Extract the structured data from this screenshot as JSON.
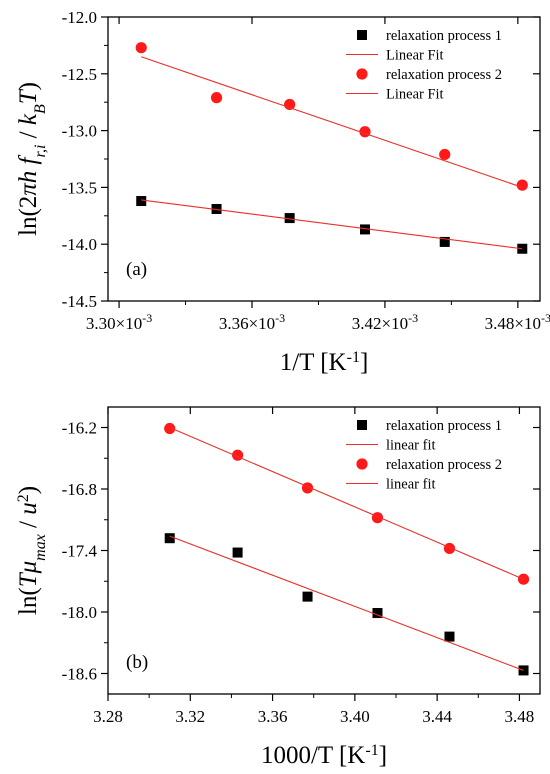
{
  "chart_data": [
    {
      "type": "scatter",
      "panel_label": "(a)",
      "xlabel": "1/T [K",
      "xlabel_sup": "-1",
      "xlabel_close": "]",
      "ylabel": "ln(2πh f_r,i / k_B T)",
      "xlim": [
        0.003295,
        0.00349
      ],
      "ylim": [
        -14.5,
        -12.0
      ],
      "x_ticks": [
        0.0033,
        0.00336,
        0.00342,
        0.00348
      ],
      "x_tick_labels": [
        {
          "mantissa": "3.30×10",
          "exp": "-3"
        },
        {
          "mantissa": "3.36×10",
          "exp": "-3"
        },
        {
          "mantissa": "3.42×10",
          "exp": "-3"
        },
        {
          "mantissa": "3.48×10",
          "exp": "-3"
        }
      ],
      "y_ticks": [
        -12.0,
        -12.5,
        -13.0,
        -13.5,
        -14.0,
        -14.5
      ],
      "y_tick_labels": [
        "-12.0",
        "-12.5",
        "-13.0",
        "-13.5",
        "-14.0",
        "-14.5"
      ],
      "legend_position": "top-right",
      "series": [
        {
          "name": "relaxation process 1",
          "marker": "square",
          "color": "#000000",
          "x": [
            0.00331,
            0.003344,
            0.003377,
            0.003411,
            0.003447,
            0.003482
          ],
          "y": [
            -13.62,
            -13.69,
            -13.77,
            -13.87,
            -13.98,
            -14.04
          ]
        },
        {
          "name": "Linear Fit",
          "kind": "line",
          "color": "#e8302a",
          "x": [
            0.00331,
            0.003482
          ],
          "y": [
            -13.61,
            -14.04
          ]
        },
        {
          "name": "relaxation process 2",
          "marker": "circle",
          "color": "#ff1a1a",
          "x": [
            0.00331,
            0.003344,
            0.003377,
            0.003411,
            0.003447,
            0.003482
          ],
          "y": [
            -12.27,
            -12.71,
            -12.77,
            -13.01,
            -13.21,
            -13.48
          ]
        },
        {
          "name": "Linear Fit",
          "kind": "line",
          "color": "#e8302a",
          "x": [
            0.00331,
            0.003482
          ],
          "y": [
            -12.35,
            -13.5
          ]
        }
      ]
    },
    {
      "type": "scatter",
      "panel_label": "(b)",
      "xlabel": "1000/T [K",
      "xlabel_sup": "-1",
      "xlabel_close": "]",
      "ylabel": "ln(Tμ_max / u²)",
      "xlim": [
        3.28,
        3.49
      ],
      "ylim": [
        -18.8,
        -16.0
      ],
      "x_ticks": [
        3.28,
        3.32,
        3.36,
        3.4,
        3.44,
        3.48
      ],
      "x_tick_labels": [
        "3.28",
        "3.32",
        "3.36",
        "3.40",
        "3.44",
        "3.48"
      ],
      "y_ticks": [
        -16.2,
        -16.8,
        -17.4,
        -18.0,
        -18.6
      ],
      "y_tick_labels": [
        "-16.2",
        "-16.8",
        "-17.4",
        "-18.0",
        "-18.6"
      ],
      "legend_position": "top-right",
      "series": [
        {
          "name": "relaxation process 1",
          "marker": "square",
          "color": "#000000",
          "x": [
            3.31,
            3.343,
            3.377,
            3.411,
            3.446,
            3.482
          ],
          "y": [
            -17.28,
            -17.42,
            -17.85,
            -18.01,
            -18.24,
            -18.57
          ]
        },
        {
          "name": "linear fit",
          "kind": "line",
          "color": "#e8302a",
          "x": [
            3.31,
            3.482
          ],
          "y": [
            -17.26,
            -18.57
          ]
        },
        {
          "name": "relaxation process 2",
          "marker": "circle",
          "color": "#ff1a1a",
          "x": [
            3.31,
            3.343,
            3.377,
            3.411,
            3.446,
            3.482
          ],
          "y": [
            -16.21,
            -16.47,
            -16.79,
            -17.08,
            -17.38,
            -17.68
          ]
        },
        {
          "name": "linear fit",
          "kind": "line",
          "color": "#e8302a",
          "x": [
            3.31,
            3.482
          ],
          "y": [
            -16.2,
            -17.68
          ]
        }
      ]
    }
  ]
}
